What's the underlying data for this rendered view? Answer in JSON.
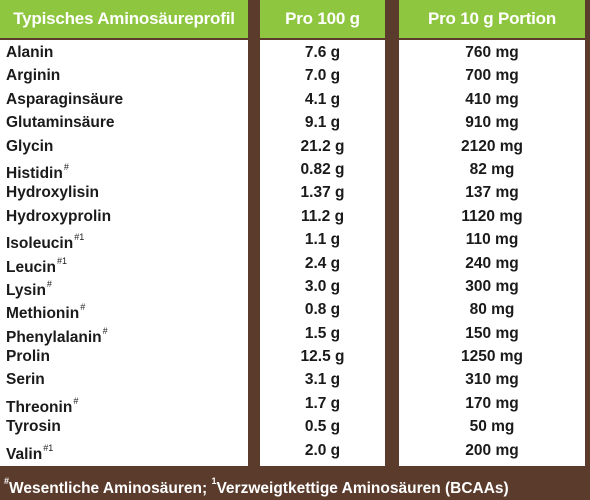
{
  "header": {
    "col1": "Typisches Aminosäureprofil",
    "col2": "Pro 100 g",
    "col3": "Pro 10 g Portion"
  },
  "rows": [
    {
      "name": "Alanin",
      "mark": "",
      "per100": "7.6 g",
      "per10": "760 mg"
    },
    {
      "name": "Arginin",
      "mark": "",
      "per100": "7.0 g",
      "per10": "700 mg"
    },
    {
      "name": "Asparaginsäure",
      "mark": "",
      "per100": "4.1 g",
      "per10": "410 mg"
    },
    {
      "name": "Glutaminsäure",
      "mark": "",
      "per100": "9.1 g",
      "per10": "910 mg"
    },
    {
      "name": "Glycin",
      "mark": "",
      "per100": "21.2 g",
      "per10": "2120 mg"
    },
    {
      "name": "Histidin",
      "mark": "#",
      "per100": "0.82 g",
      "per10": "82 mg"
    },
    {
      "name": "Hydroxylisin",
      "mark": "",
      "per100": "1.37 g",
      "per10": "137 mg"
    },
    {
      "name": "Hydroxyprolin",
      "mark": "",
      "per100": "11.2 g",
      "per10": "1120 mg"
    },
    {
      "name": "Isoleucin",
      "mark": "#1",
      "per100": "1.1 g",
      "per10": "110 mg"
    },
    {
      "name": "Leucin",
      "mark": "#1",
      "per100": "2.4 g",
      "per10": "240 mg"
    },
    {
      "name": "Lysin",
      "mark": "#",
      "per100": "3.0 g",
      "per10": "300 mg"
    },
    {
      "name": "Methionin",
      "mark": "#",
      "per100": "0.8 g",
      "per10": "80 mg"
    },
    {
      "name": "Phenylalanin",
      "mark": "#",
      "per100": "1.5 g",
      "per10": "150 mg"
    },
    {
      "name": "Prolin",
      "mark": "",
      "per100": "12.5 g",
      "per10": "1250 mg"
    },
    {
      "name": "Serin",
      "mark": "",
      "per100": "3.1 g",
      "per10": "310 mg"
    },
    {
      "name": "Threonin",
      "mark": "#",
      "per100": "1.7 g",
      "per10": "170 mg"
    },
    {
      "name": "Tyrosin",
      "mark": "",
      "per100": "0.5 g",
      "per10": "50 mg"
    },
    {
      "name": "Valin",
      "mark": "#1",
      "per100": "2.0 g",
      "per10": "200 mg"
    }
  ],
  "footer": {
    "mark1": "#",
    "text1": "Wesentliche Aminosäuren; ",
    "mark2": "1",
    "text2": "Verzweigtkettige Aminosäuren (BCAAs)"
  },
  "colors": {
    "header_green": "#8ec63f",
    "frame_brown": "#5a3b2c",
    "text": "#1a1a1a"
  }
}
